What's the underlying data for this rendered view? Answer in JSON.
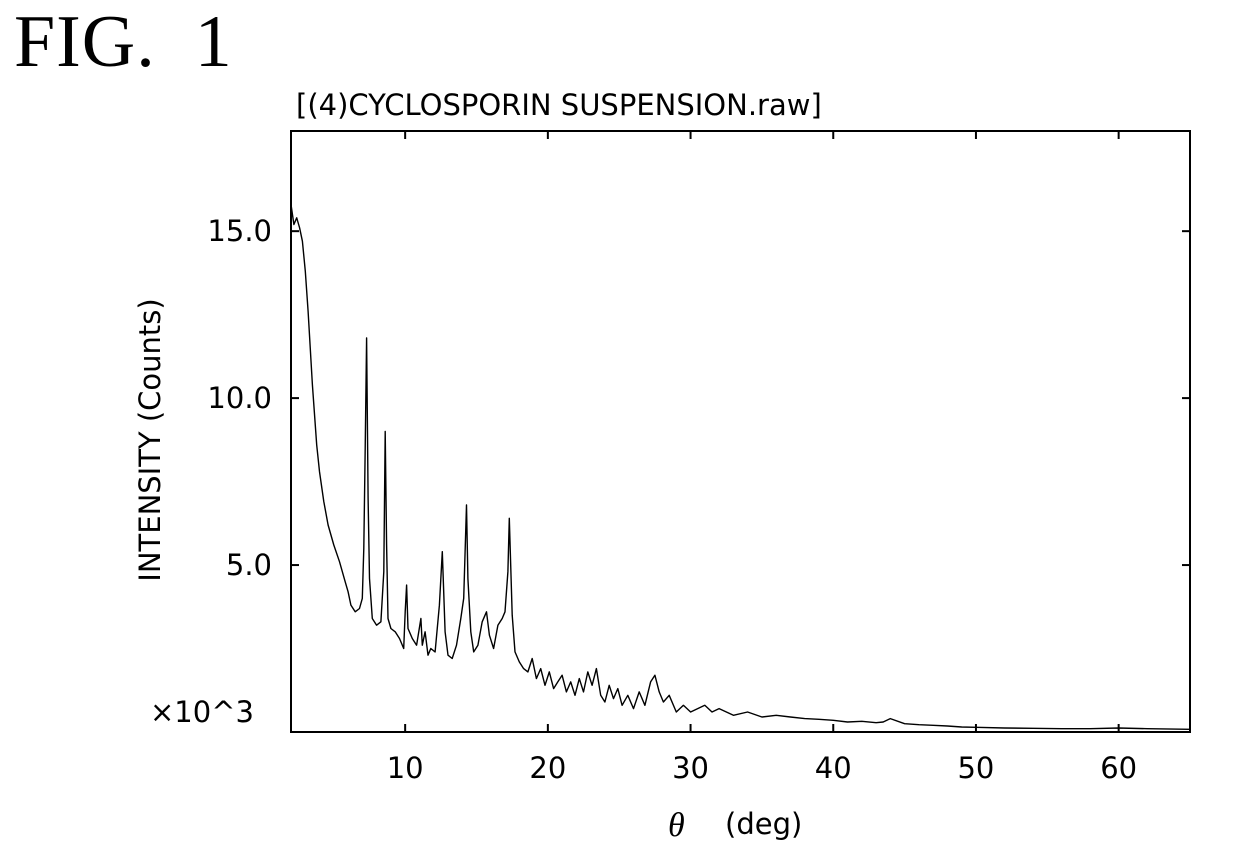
{
  "figure_label": "FIG.  1",
  "chart_data": {
    "type": "line",
    "title": "[(4)CYCLOSPORIN SUSPENSION.raw]",
    "xlabel": "(deg)",
    "xlabel_symbol": "θ",
    "ylabel": "INTENSITY (Counts)",
    "y_multiplier": "×10^3",
    "xlim": [
      2,
      65
    ],
    "ylim": [
      0,
      18
    ],
    "x_ticks": [
      10,
      20,
      30,
      40,
      50,
      60
    ],
    "x_tick_labels": [
      "10",
      "20",
      "30",
      "40",
      "50",
      "60"
    ],
    "y_ticks": [
      5,
      10,
      15
    ],
    "y_tick_labels": [
      "5.0",
      "10.0",
      "15.0"
    ],
    "grid": false,
    "legend": "none",
    "line_color": "#000000",
    "series": [
      {
        "x": [
          2.0,
          2.2,
          2.4,
          2.6,
          2.8,
          3.0,
          3.2,
          3.5,
          3.8,
          4.0,
          4.3,
          4.6,
          5.0,
          5.4,
          5.8,
          6.0,
          6.2,
          6.5,
          6.8,
          7.0,
          7.1,
          7.2,
          7.3,
          7.4,
          7.5,
          7.7,
          8.0,
          8.3,
          8.5,
          8.6,
          8.7,
          8.8,
          9.0,
          9.3,
          9.6,
          9.9,
          10.0,
          10.1,
          10.2,
          10.5,
          10.8,
          11.1,
          11.2,
          11.4,
          11.6,
          11.8,
          12.1,
          12.4,
          12.6,
          12.8,
          13.0,
          13.3,
          13.6,
          13.9,
          14.1,
          14.3,
          14.4,
          14.6,
          14.8,
          15.1,
          15.4,
          15.7,
          15.9,
          16.2,
          16.5,
          16.8,
          17.0,
          17.2,
          17.3,
          17.5,
          17.7,
          18.0,
          18.3,
          18.6,
          18.9,
          19.2,
          19.5,
          19.8,
          20.1,
          20.4,
          20.7,
          21.0,
          21.3,
          21.6,
          21.9,
          22.2,
          22.5,
          22.8,
          23.1,
          23.4,
          23.7,
          24.0,
          24.3,
          24.6,
          24.9,
          25.2,
          25.6,
          26.0,
          26.4,
          26.8,
          27.2,
          27.5,
          27.8,
          28.1,
          28.5,
          29.0,
          29.5,
          30.0,
          30.5,
          31.0,
          31.5,
          32.0,
          33.0,
          34.0,
          35.0,
          36.0,
          37.0,
          38.0,
          39.0,
          40.0,
          41.0,
          42.0,
          43.0,
          43.5,
          44.0,
          45.0,
          46.0,
          47.0,
          48.0,
          49.0,
          50.0,
          52.0,
          54.0,
          56.0,
          58.0,
          60.0,
          62.0,
          65.0
        ],
        "values": [
          15.8,
          15.2,
          15.4,
          15.1,
          14.7,
          13.8,
          12.6,
          10.4,
          8.6,
          7.8,
          6.9,
          6.2,
          5.6,
          5.1,
          4.5,
          4.2,
          3.8,
          3.6,
          3.7,
          4.0,
          5.5,
          8.5,
          11.8,
          7.0,
          4.6,
          3.4,
          3.2,
          3.3,
          4.8,
          9.0,
          5.6,
          3.4,
          3.1,
          3.0,
          2.8,
          2.5,
          3.6,
          4.4,
          3.1,
          2.8,
          2.6,
          3.4,
          2.6,
          3.0,
          2.3,
          2.5,
          2.4,
          3.8,
          5.4,
          3.0,
          2.3,
          2.2,
          2.6,
          3.4,
          4.0,
          6.8,
          4.6,
          3.0,
          2.4,
          2.6,
          3.3,
          3.6,
          2.9,
          2.5,
          3.2,
          3.4,
          3.6,
          4.8,
          6.4,
          3.5,
          2.4,
          2.1,
          1.9,
          1.8,
          2.2,
          1.6,
          1.9,
          1.4,
          1.8,
          1.3,
          1.5,
          1.7,
          1.2,
          1.5,
          1.1,
          1.6,
          1.2,
          1.8,
          1.4,
          1.9,
          1.1,
          0.9,
          1.4,
          1.0,
          1.3,
          0.8,
          1.1,
          0.7,
          1.2,
          0.8,
          1.5,
          1.7,
          1.2,
          0.9,
          1.1,
          0.6,
          0.8,
          0.6,
          0.7,
          0.8,
          0.6,
          0.7,
          0.5,
          0.6,
          0.45,
          0.5,
          0.45,
          0.4,
          0.38,
          0.35,
          0.3,
          0.32,
          0.28,
          0.3,
          0.4,
          0.25,
          0.22,
          0.2,
          0.18,
          0.15,
          0.14,
          0.12,
          0.11,
          0.1,
          0.1,
          0.12,
          0.1,
          0.08
        ]
      }
    ]
  }
}
